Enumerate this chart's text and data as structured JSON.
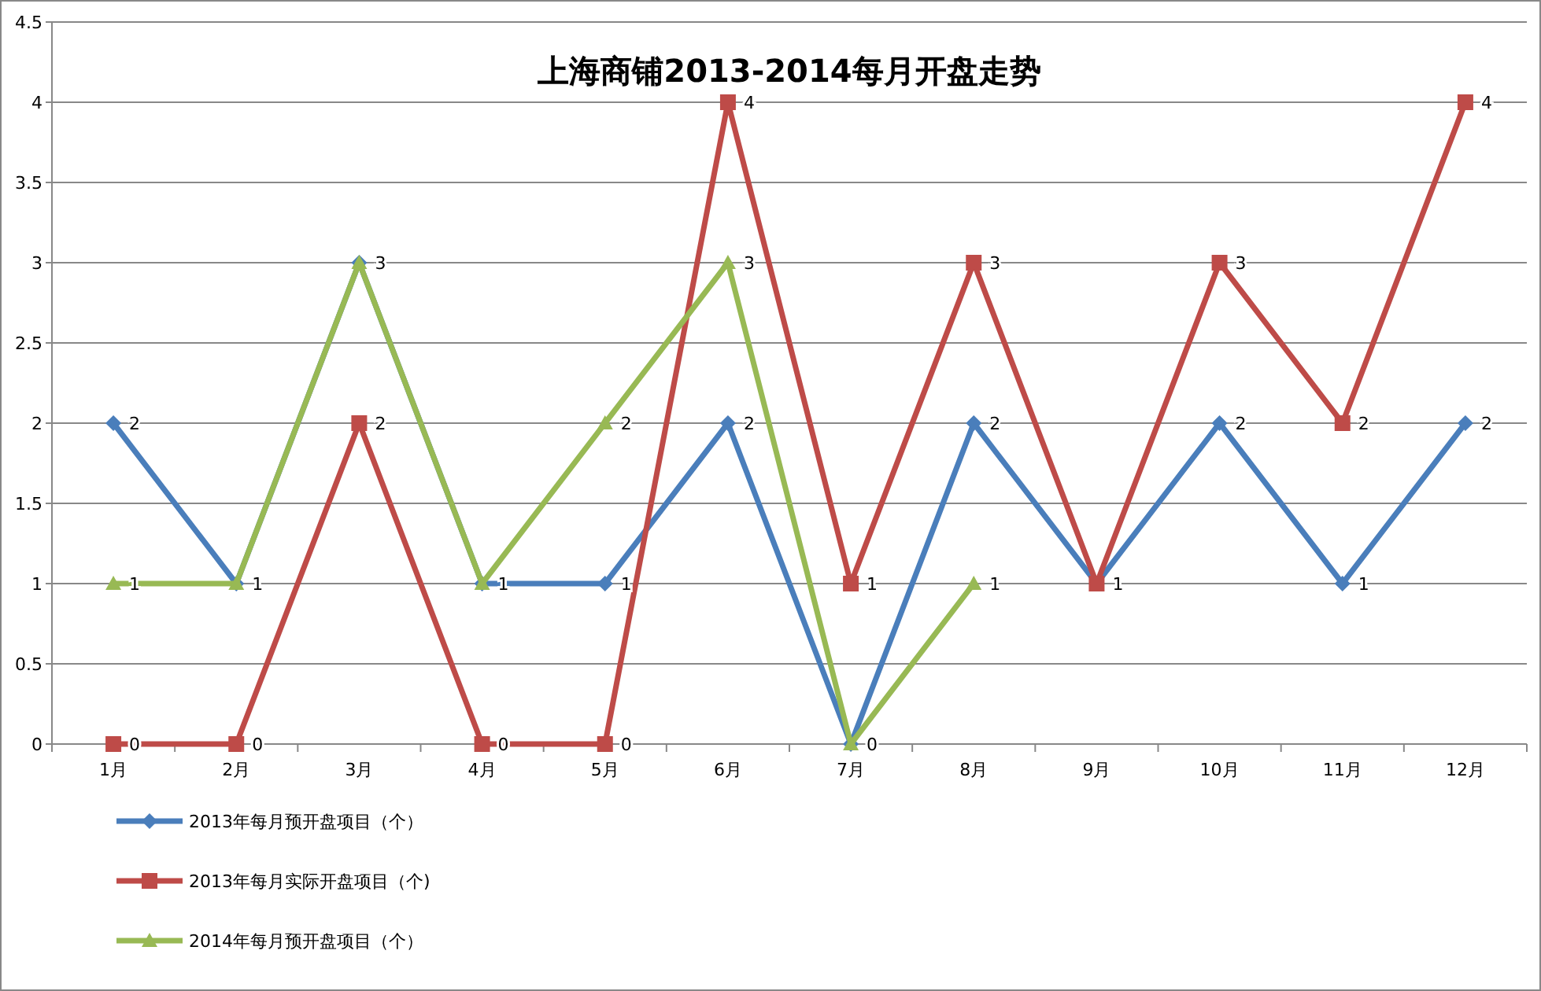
{
  "chart_data": {
    "type": "line",
    "title": "上海商铺2013-2014每月开盘走势",
    "categories": [
      "1月",
      "2月",
      "3月",
      "4月",
      "5月",
      "6月",
      "7月",
      "8月",
      "9月",
      "10月",
      "11月",
      "12月"
    ],
    "series": [
      {
        "name": "2013年每月预开盘项目（个）",
        "color": "#4a7ebb",
        "marker": "diamond",
        "values": [
          2,
          1,
          3,
          1,
          1,
          2,
          0,
          2,
          1,
          2,
          1,
          2
        ],
        "value_labels": [
          "2",
          "1",
          "3",
          "1",
          "1",
          "2",
          "0",
          "2",
          "1",
          "2",
          "1",
          "2"
        ]
      },
      {
        "name": "2013年每月实际开盘项目（个)",
        "color": "#be4b48",
        "marker": "square",
        "values": [
          0,
          0,
          2,
          0,
          0,
          4,
          1,
          3,
          1,
          3,
          2,
          4
        ],
        "value_labels": [
          "0",
          "0",
          "2",
          "0",
          "0",
          "4",
          "1",
          "3",
          null,
          "3",
          "2",
          "4"
        ]
      },
      {
        "name": "2014年每月预开盘项目（个）",
        "color": "#98b954",
        "marker": "triangle",
        "values": [
          1,
          1,
          3,
          1,
          2,
          3,
          0,
          1,
          null,
          null,
          null,
          null
        ],
        "value_labels": [
          "1",
          null,
          null,
          null,
          "2",
          "3",
          null,
          "1",
          null,
          null,
          null,
          null
        ]
      }
    ],
    "ylim": [
      0,
      4.5
    ],
    "yticks": [
      0,
      0.5,
      1,
      1.5,
      2,
      2.5,
      3,
      3.5,
      4,
      4.5
    ],
    "grid": "y",
    "legend": "bottom"
  }
}
